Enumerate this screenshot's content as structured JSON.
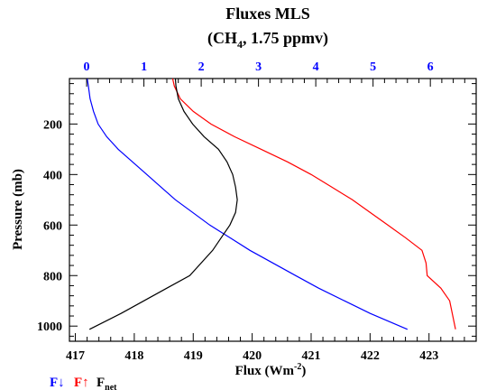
{
  "chart_data": {
    "type": "line",
    "title": "Fluxes MLS",
    "subtitle": {
      "prefix": "(CH",
      "sub": "4",
      "suffix": ", 1.75 ppmv)"
    },
    "xlabel": {
      "main": "Flux (Wm",
      "sup": "-2",
      "close": ")"
    },
    "ylabel": "Pressure (mb)",
    "bottom_axis": {
      "range": [
        416.9,
        423.8
      ],
      "ticks": [
        417,
        418,
        419,
        420,
        421,
        422,
        423
      ],
      "color": "#000000"
    },
    "top_axis": {
      "range": [
        -0.3,
        6.8
      ],
      "ticks": [
        0,
        1,
        2,
        3,
        4,
        5,
        6
      ],
      "color": "#0000ff"
    },
    "y_axis": {
      "range": [
        1060,
        20
      ],
      "ticks": [
        200,
        400,
        600,
        800,
        1000
      ],
      "reversed": true
    },
    "series": [
      {
        "name": "F↓",
        "axis": "top",
        "color": "#0000ff",
        "points": [
          [
            0.01,
            20
          ],
          [
            0.03,
            50
          ],
          [
            0.06,
            100
          ],
          [
            0.12,
            150
          ],
          [
            0.2,
            200
          ],
          [
            0.35,
            250
          ],
          [
            0.55,
            300
          ],
          [
            0.8,
            350
          ],
          [
            1.05,
            400
          ],
          [
            1.3,
            450
          ],
          [
            1.55,
            500
          ],
          [
            1.85,
            550
          ],
          [
            2.15,
            600
          ],
          [
            2.5,
            650
          ],
          [
            2.85,
            700
          ],
          [
            3.25,
            750
          ],
          [
            3.65,
            800
          ],
          [
            4.05,
            850
          ],
          [
            4.5,
            900
          ],
          [
            4.95,
            950
          ],
          [
            5.6,
            1013
          ]
        ]
      },
      {
        "name": "F↑",
        "axis": "bottom",
        "color": "#ff0000",
        "points": [
          [
            418.65,
            20
          ],
          [
            418.68,
            50
          ],
          [
            418.78,
            100
          ],
          [
            419.0,
            150
          ],
          [
            419.3,
            200
          ],
          [
            419.7,
            250
          ],
          [
            420.15,
            300
          ],
          [
            420.6,
            350
          ],
          [
            421.0,
            400
          ],
          [
            421.35,
            450
          ],
          [
            421.7,
            500
          ],
          [
            422.0,
            550
          ],
          [
            422.3,
            600
          ],
          [
            422.6,
            650
          ],
          [
            422.88,
            700
          ],
          [
            422.95,
            750
          ],
          [
            422.97,
            800
          ],
          [
            423.2,
            850
          ],
          [
            423.35,
            900
          ],
          [
            423.45,
            1013
          ]
        ]
      },
      {
        "name": "F",
        "name_sub": "net",
        "axis": "top",
        "color": "#000000",
        "points": [
          [
            1.55,
            20
          ],
          [
            1.56,
            50
          ],
          [
            1.6,
            100
          ],
          [
            1.7,
            150
          ],
          [
            1.85,
            200
          ],
          [
            2.05,
            250
          ],
          [
            2.3,
            300
          ],
          [
            2.45,
            350
          ],
          [
            2.55,
            400
          ],
          [
            2.6,
            450
          ],
          [
            2.63,
            500
          ],
          [
            2.6,
            550
          ],
          [
            2.5,
            600
          ],
          [
            2.35,
            650
          ],
          [
            2.2,
            700
          ],
          [
            1.8,
            800
          ],
          [
            1.4,
            850
          ],
          [
            1.0,
            900
          ],
          [
            0.6,
            950
          ],
          [
            0.05,
            1013
          ]
        ]
      }
    ],
    "grid": false,
    "legend_position": "bottom-left"
  }
}
